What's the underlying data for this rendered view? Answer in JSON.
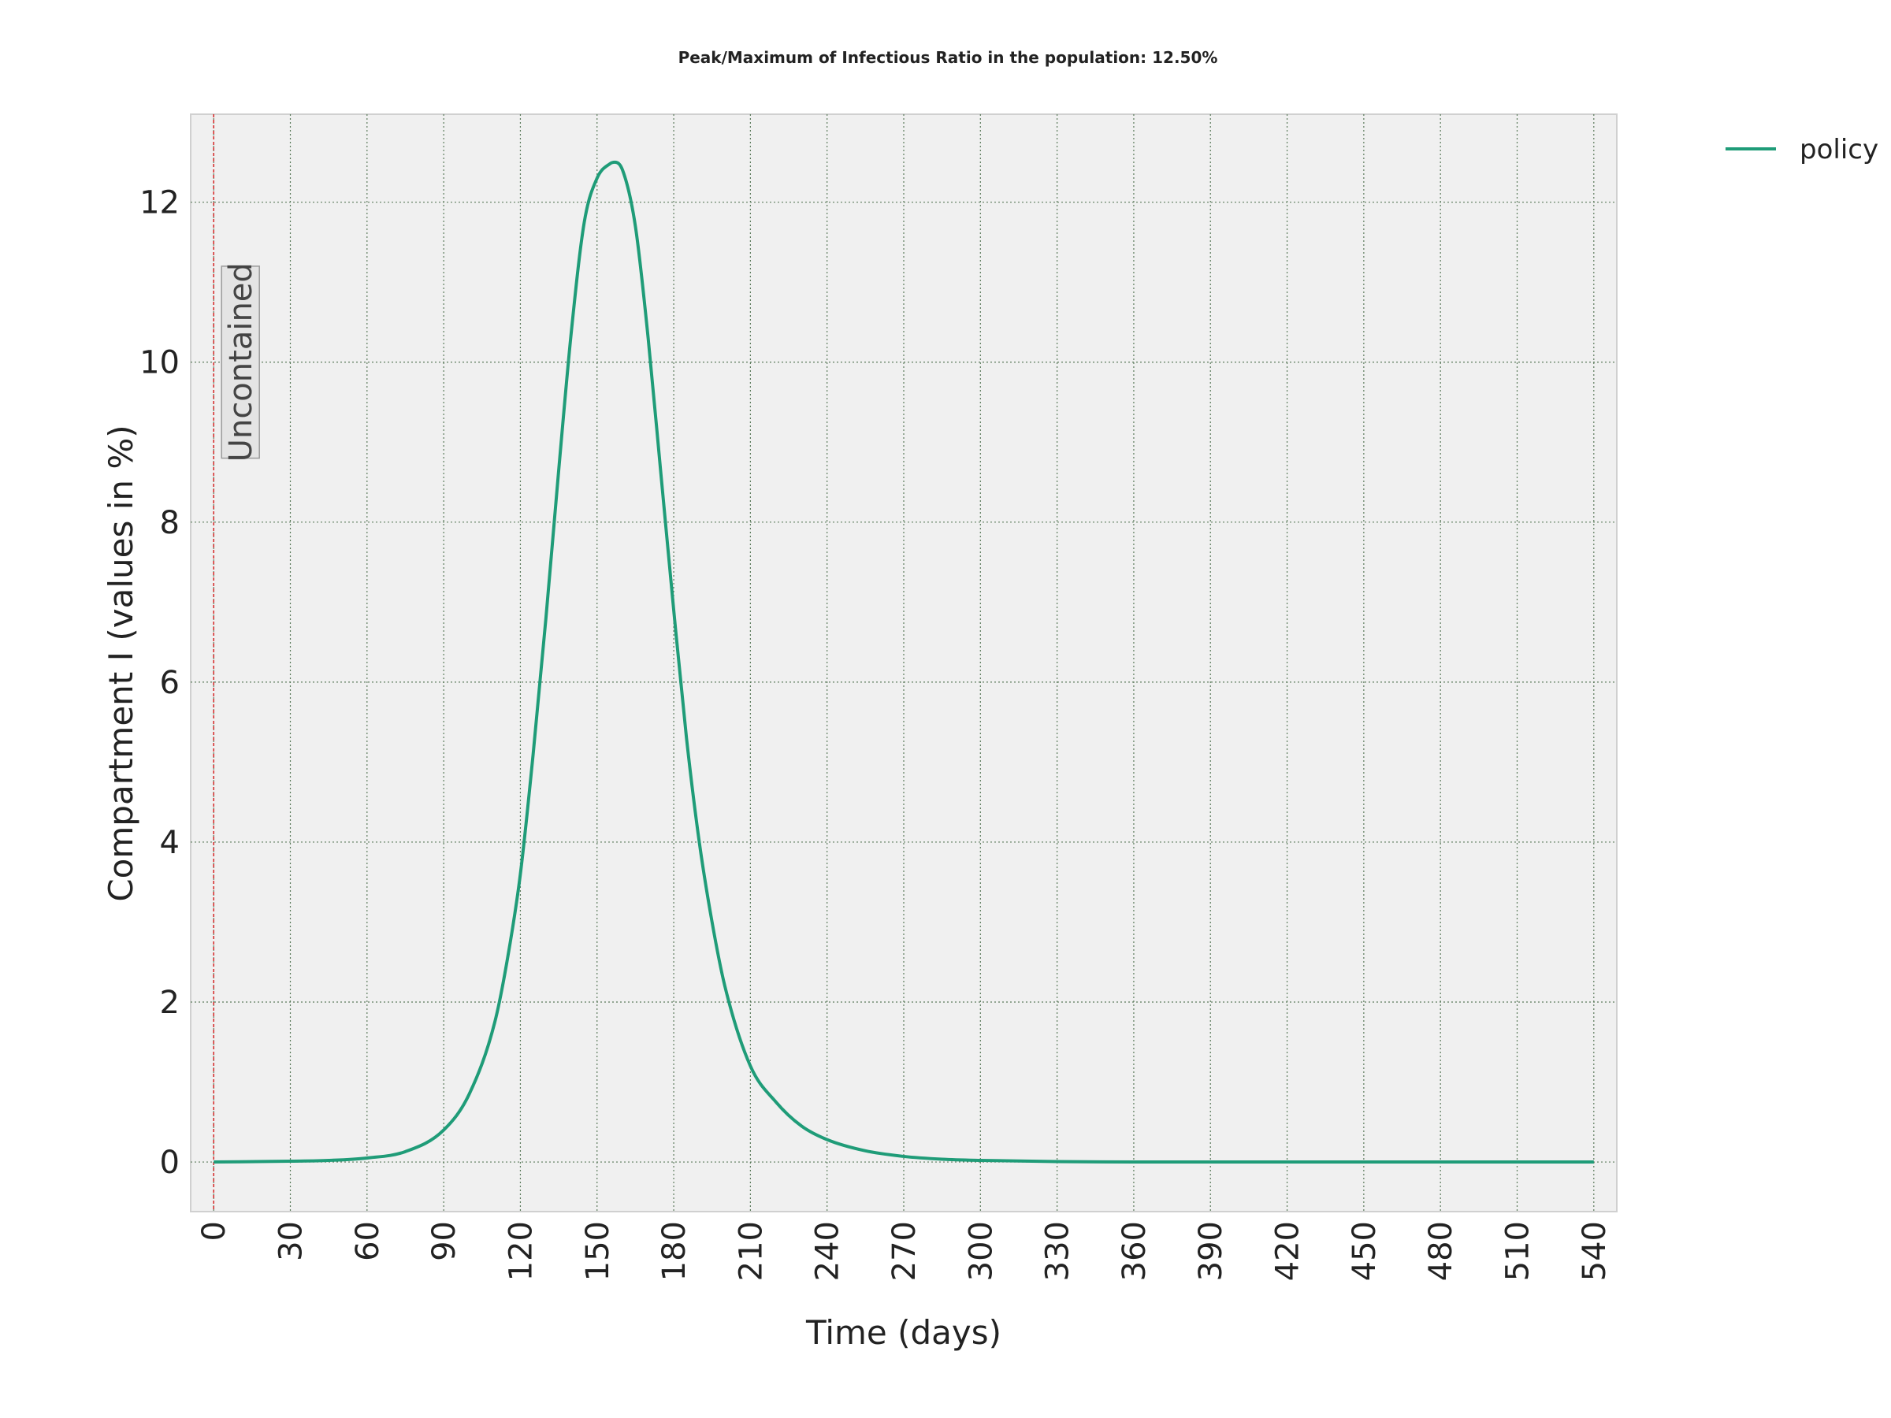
{
  "chart_data": {
    "type": "line",
    "title": "Peak/Maximum of Infectious Ratio in the population: 12.50%",
    "xlabel": "Time (days)",
    "ylabel": "Compartment I (values in %)",
    "xlim": [
      -9,
      549
    ],
    "ylim": [
      -0.62,
      13.1
    ],
    "xticks": [
      0,
      30,
      60,
      90,
      120,
      150,
      180,
      210,
      240,
      270,
      300,
      330,
      360,
      390,
      420,
      450,
      480,
      510,
      540
    ],
    "yticks": [
      0,
      2,
      4,
      6,
      8,
      10,
      12
    ],
    "grid": true,
    "legend_position": "upper-right-outside",
    "series": [
      {
        "name": "policy",
        "color": "#1f9c78",
        "x": [
          0,
          30,
          45,
          60,
          75,
          90,
          100,
          110,
          115,
          120,
          125,
          130,
          135,
          140,
          145,
          150,
          155,
          157,
          160,
          165,
          170,
          175,
          180,
          185,
          190,
          195,
          200,
          210,
          220,
          230,
          240,
          255,
          270,
          285,
          300,
          330,
          360,
          390,
          450,
          540
        ],
        "y": [
          0.0,
          0.01,
          0.02,
          0.05,
          0.13,
          0.4,
          0.85,
          1.75,
          2.55,
          3.6,
          5.1,
          6.8,
          8.65,
          10.4,
          11.75,
          12.3,
          12.48,
          12.5,
          12.4,
          11.7,
          10.3,
          8.6,
          6.9,
          5.3,
          4.0,
          3.0,
          2.2,
          1.2,
          0.75,
          0.45,
          0.28,
          0.14,
          0.07,
          0.035,
          0.02,
          0.005,
          0.0,
          0.0,
          0.0,
          0.0
        ]
      }
    ],
    "annotations": [
      {
        "text": "Uncontained",
        "x": 0,
        "style": "vertical-dashed-line",
        "line_color": "#d62728"
      }
    ]
  }
}
